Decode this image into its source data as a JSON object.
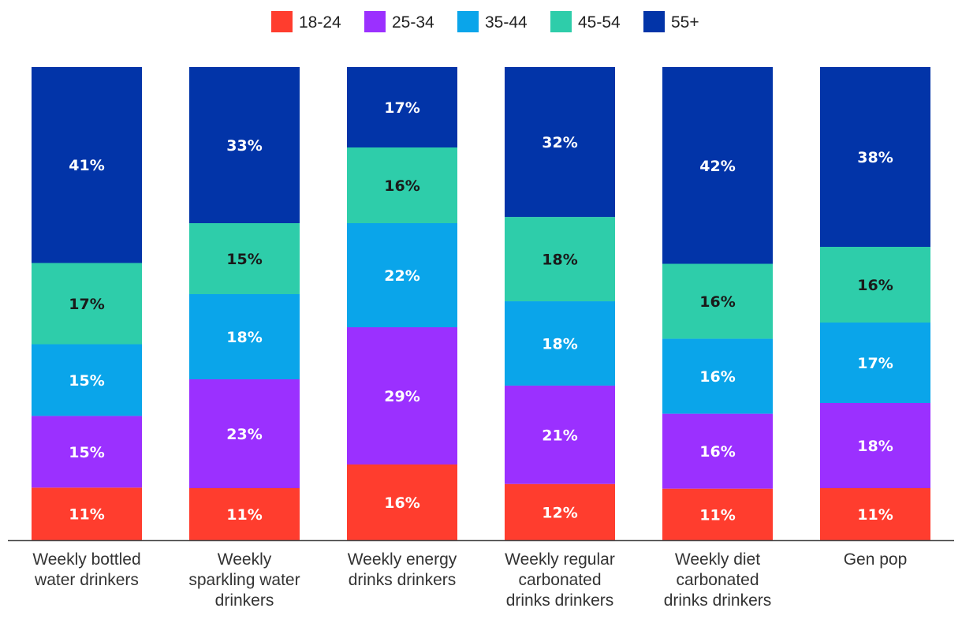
{
  "chart_data": {
    "type": "bar",
    "stacked": true,
    "percent_stacked": true,
    "title": "",
    "xlabel": "",
    "ylabel": "",
    "ylim": [
      0,
      100
    ],
    "grid": false,
    "legend_position": "top-center",
    "categories": [
      [
        "Weekly bottled",
        "water drinkers"
      ],
      [
        "Weekly",
        "sparkling water",
        "drinkers"
      ],
      [
        "Weekly energy",
        "drinks drinkers"
      ],
      [
        "Weekly regular",
        "carbonated",
        "drinks drinkers"
      ],
      [
        "Weekly diet",
        "carbonated",
        "drinks drinkers"
      ],
      [
        "Gen pop"
      ]
    ],
    "series": [
      {
        "name": "18-24",
        "color": "#ff3d2e",
        "label_color": "#ffffff",
        "values": [
          11,
          11,
          16,
          12,
          11,
          11
        ],
        "labels": [
          "11%",
          "11%",
          "16%",
          "12%",
          "11%",
          "11%"
        ]
      },
      {
        "name": "25-34",
        "color": "#9b30ff",
        "label_color": "#ffffff",
        "values": [
          15,
          23,
          29,
          21,
          16,
          18
        ],
        "labels": [
          "15%",
          "23%",
          "29%",
          "21%",
          "16%",
          "18%"
        ]
      },
      {
        "name": "35-44",
        "color": "#0aa5ea",
        "label_color": "#ffffff",
        "values": [
          15,
          18,
          22,
          18,
          16,
          17
        ],
        "labels": [
          "15%",
          "18%",
          "22%",
          "18%",
          "16%",
          "17%"
        ]
      },
      {
        "name": "45-54",
        "color": "#2ecdaa",
        "label_color": "#1a1a1a",
        "values": [
          17,
          15,
          16,
          18,
          16,
          16
        ],
        "labels": [
          "17%",
          "15%",
          "16%",
          "18%",
          "16%",
          "16%"
        ]
      },
      {
        "name": "55+",
        "color": "#0234a8",
        "label_color": "#ffffff",
        "values": [
          41,
          33,
          17,
          32,
          42,
          38
        ],
        "labels": [
          "41%",
          "33%",
          "17%",
          "32%",
          "42%",
          "38%"
        ]
      }
    ],
    "axis_color": "#444444"
  }
}
